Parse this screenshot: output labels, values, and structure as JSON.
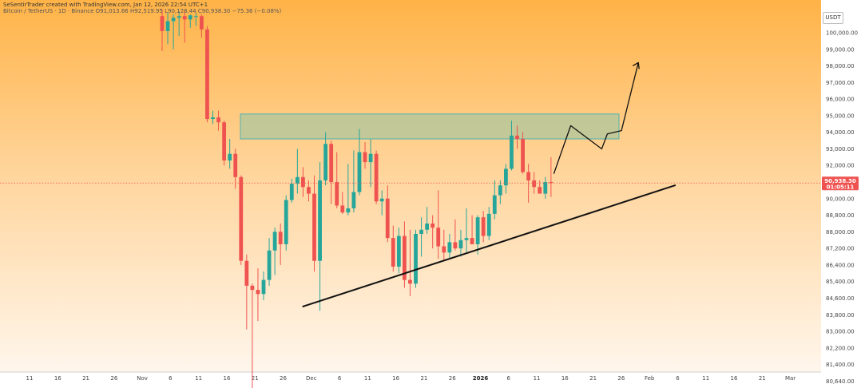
{
  "header": {
    "attribution": "SeSentirTrader created with TradingView.com, Jan 12, 2026 22:54 UTC+1",
    "symbol_line": "Bitcoin / TetherUS · 1D · Binance  O91,013.66  H92,519.95  L90,128.44  C90,938.30  −75.36 (−0.08%)"
  },
  "currency_button": "USDT",
  "price_tag": {
    "value": "90,938.30",
    "countdown": "01:05:11"
  },
  "colors": {
    "bull": "#26a69a",
    "bear": "#ef5350",
    "zone_fill": "#b7c79a",
    "zone_stroke": "#4fb3b3"
  },
  "chart_data": {
    "type": "candlestick",
    "title": "",
    "y_axis": {
      "labels": [
        "100,000.00",
        "99,000.00",
        "98,000.00",
        "97,000.00",
        "96,000.00",
        "95,000.00",
        "94,000.00",
        "93,000.00",
        "92,000.00",
        "91,000.00",
        "90,000.00",
        "88,800.00",
        "88,000.00",
        "87,200.00",
        "86,400.00",
        "85,400.00",
        "84,600.00",
        "83,800.00",
        "83,000.00",
        "82,200.00",
        "81,400.00",
        "80,640.00"
      ]
    },
    "x_axis": {
      "labels": [
        "11",
        "16",
        "21",
        "26",
        "Nov",
        "6",
        "11",
        "16",
        "21",
        "26",
        "Dec",
        "6",
        "11",
        "16",
        "21",
        "26",
        "2026",
        "6",
        "11",
        "16",
        "21",
        "26",
        "Feb",
        "6",
        "11",
        "16",
        "21",
        "Mar"
      ],
      "bold": [
        "2026"
      ]
    },
    "candles": [
      {
        "o": 101000,
        "h": 101400,
        "l": 98900,
        "c": 100100
      },
      {
        "o": 100100,
        "h": 101200,
        "l": 99300,
        "c": 100700
      },
      {
        "o": 100700,
        "h": 101100,
        "l": 99000,
        "c": 100900
      },
      {
        "o": 100900,
        "h": 101300,
        "l": 99800,
        "c": 101000
      },
      {
        "o": 101000,
        "h": 101300,
        "l": 99400,
        "c": 100800
      },
      {
        "o": 100800,
        "h": 101100,
        "l": 100300,
        "c": 101050
      },
      {
        "o": 101000,
        "h": 101200,
        "l": 100400,
        "c": 101000
      },
      {
        "o": 101000,
        "h": 101100,
        "l": 99700,
        "c": 100200
      },
      {
        "o": 100200,
        "h": 100400,
        "l": 94600,
        "c": 94800
      },
      {
        "o": 94800,
        "h": 95300,
        "l": 94500,
        "c": 94900
      },
      {
        "o": 94900,
        "h": 95300,
        "l": 94100,
        "c": 94600
      },
      {
        "o": 94600,
        "h": 94700,
        "l": 92000,
        "c": 92300
      },
      {
        "o": 92300,
        "h": 93600,
        "l": 91800,
        "c": 92700
      },
      {
        "o": 92700,
        "h": 93000,
        "l": 90600,
        "c": 91300
      },
      {
        "o": 91300,
        "h": 91400,
        "l": 86400,
        "c": 86600
      },
      {
        "o": 86600,
        "h": 86900,
        "l": 83100,
        "c": 85200
      },
      {
        "o": 85200,
        "h": 85300,
        "l": 79800,
        "c": 85000
      },
      {
        "o": 85000,
        "h": 86200,
        "l": 83500,
        "c": 84800
      },
      {
        "o": 84800,
        "h": 86000,
        "l": 84500,
        "c": 85500
      },
      {
        "o": 85500,
        "h": 87700,
        "l": 85200,
        "c": 87100
      },
      {
        "o": 87100,
        "h": 88200,
        "l": 85800,
        "c": 88000
      },
      {
        "o": 88000,
        "h": 88400,
        "l": 86400,
        "c": 87400
      },
      {
        "o": 87400,
        "h": 90200,
        "l": 87100,
        "c": 89900
      },
      {
        "o": 89900,
        "h": 91200,
        "l": 89700,
        "c": 90900
      },
      {
        "o": 90900,
        "h": 93000,
        "l": 90300,
        "c": 91300
      },
      {
        "o": 91300,
        "h": 91900,
        "l": 90100,
        "c": 90700
      },
      {
        "o": 90700,
        "h": 91100,
        "l": 89800,
        "c": 90300
      },
      {
        "o": 90300,
        "h": 91400,
        "l": 86000,
        "c": 86600
      },
      {
        "o": 86600,
        "h": 92200,
        "l": 84000,
        "c": 91100
      },
      {
        "o": 91100,
        "h": 94000,
        "l": 90800,
        "c": 93300
      },
      {
        "o": 93300,
        "h": 93500,
        "l": 89600,
        "c": 91000
      },
      {
        "o": 91000,
        "h": 92800,
        "l": 89300,
        "c": 89500
      },
      {
        "o": 89500,
        "h": 90400,
        "l": 88900,
        "c": 89000
      },
      {
        "o": 89000,
        "h": 92100,
        "l": 88800,
        "c": 89300
      },
      {
        "o": 89300,
        "h": 92900,
        "l": 89000,
        "c": 90400
      },
      {
        "o": 90400,
        "h": 94200,
        "l": 90200,
        "c": 92800
      },
      {
        "o": 92800,
        "h": 93400,
        "l": 91800,
        "c": 92200
      },
      {
        "o": 92200,
        "h": 93600,
        "l": 90700,
        "c": 92700
      },
      {
        "o": 92700,
        "h": 92900,
        "l": 89600,
        "c": 89800
      },
      {
        "o": 89800,
        "h": 90500,
        "l": 88800,
        "c": 90000
      },
      {
        "o": 90000,
        "h": 90800,
        "l": 87500,
        "c": 87700
      },
      {
        "o": 87700,
        "h": 88300,
        "l": 86000,
        "c": 86300
      },
      {
        "o": 86300,
        "h": 88200,
        "l": 85900,
        "c": 87800
      },
      {
        "o": 87800,
        "h": 88500,
        "l": 85100,
        "c": 85500
      },
      {
        "o": 85500,
        "h": 88100,
        "l": 84700,
        "c": 85300
      },
      {
        "o": 85300,
        "h": 88100,
        "l": 85100,
        "c": 87900
      },
      {
        "o": 87900,
        "h": 88700,
        "l": 86800,
        "c": 88100
      },
      {
        "o": 88100,
        "h": 89400,
        "l": 87900,
        "c": 88400
      },
      {
        "o": 88400,
        "h": 88800,
        "l": 87200,
        "c": 88200
      },
      {
        "o": 88200,
        "h": 90500,
        "l": 86700,
        "c": 87300
      },
      {
        "o": 87300,
        "h": 88100,
        "l": 86600,
        "c": 87000
      },
      {
        "o": 87000,
        "h": 87900,
        "l": 86700,
        "c": 87500
      },
      {
        "o": 87500,
        "h": 88600,
        "l": 87100,
        "c": 87200
      },
      {
        "o": 87200,
        "h": 88100,
        "l": 86800,
        "c": 87600
      },
      {
        "o": 87600,
        "h": 89300,
        "l": 87000,
        "c": 87700
      },
      {
        "o": 87700,
        "h": 88800,
        "l": 87400,
        "c": 87400
      },
      {
        "o": 87400,
        "h": 88800,
        "l": 86900,
        "c": 88700
      },
      {
        "o": 88700,
        "h": 89100,
        "l": 87500,
        "c": 87800
      },
      {
        "o": 87800,
        "h": 89400,
        "l": 87600,
        "c": 88900
      },
      {
        "o": 88900,
        "h": 91100,
        "l": 88600,
        "c": 90200
      },
      {
        "o": 90200,
        "h": 91100,
        "l": 89600,
        "c": 90800
      },
      {
        "o": 90800,
        "h": 92100,
        "l": 90300,
        "c": 91800
      },
      {
        "o": 91800,
        "h": 94700,
        "l": 91700,
        "c": 93800
      },
      {
        "o": 93800,
        "h": 94400,
        "l": 93000,
        "c": 93600
      },
      {
        "o": 93600,
        "h": 94000,
        "l": 91500,
        "c": 91600
      },
      {
        "o": 91600,
        "h": 92100,
        "l": 89700,
        "c": 91100
      },
      {
        "o": 91100,
        "h": 91600,
        "l": 90300,
        "c": 90700
      },
      {
        "o": 90700,
        "h": 91100,
        "l": 90500,
        "c": 90300
      },
      {
        "o": 90300,
        "h": 91300,
        "l": 90000,
        "c": 91000
      },
      {
        "o": 91000,
        "h": 92500,
        "l": 90100,
        "c": 90940
      }
    ],
    "resistance_zone": {
      "low": 93600,
      "high": 95100
    },
    "projection": [
      [
        91500
      ],
      [
        94400
      ],
      [
        93000
      ],
      [
        93900
      ],
      [
        94100
      ],
      [
        98200
      ]
    ]
  }
}
